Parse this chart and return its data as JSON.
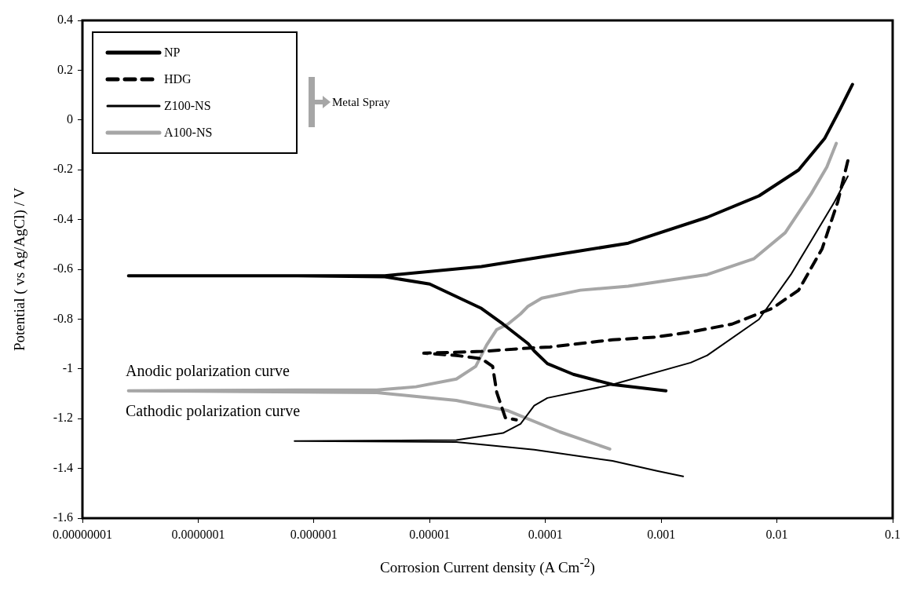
{
  "chart_data": {
    "type": "line",
    "xlabel": "Corrosion Current density (A Cm$^{-2}$)",
    "ylabel": "Potential ( vs Ag/AgCl) / V",
    "log": "x",
    "grid": false,
    "legend": "top left",
    "xlim": [
      1e-08,
      0.1
    ],
    "ylim": [
      -1.6,
      0.4
    ],
    "xticks": [
      {
        "value": 1e-08,
        "label": "0.00000001"
      },
      {
        "value": 1e-07,
        "label": "0.0000001"
      },
      {
        "value": 1e-06,
        "label": "0.000001"
      },
      {
        "value": 1e-05,
        "label": "0.00001"
      },
      {
        "value": 0.0001,
        "label": "0.0001"
      },
      {
        "value": 0.001,
        "label": "0.001"
      },
      {
        "value": 0.01,
        "label": "0.01"
      },
      {
        "value": 0.1,
        "label": "0.1"
      }
    ],
    "yticks": [
      -1.6,
      -1.4,
      -1.2,
      -1,
      -0.8,
      -0.6,
      -0.4,
      -0.2,
      0,
      0.2,
      0.4
    ],
    "annotations": [
      "Anodic polarization curve",
      "Cathodic polarization curve",
      "Metal Spray"
    ],
    "series": [
      {
        "name": "NP",
        "color": "#000000",
        "line_style": "solid",
        "x": [
          0.0011,
          0.00038,
          0.000174,
          0.000104,
          8e-05,
          7.1e-05,
          4.3e-05,
          2.8e-05,
          1e-05,
          4.1e-06,
          7.3e-07,
          2.5e-08,
          7.3e-07,
          4.1e-06,
          2.8e-05,
          0.0002,
          0.00052,
          0.0025,
          0.007,
          0.0154,
          0.0258,
          0.035,
          0.045
        ],
        "values": [
          -1.088,
          -1.063,
          -1.022,
          -0.979,
          -0.928,
          -0.899,
          -0.82,
          -0.757,
          -0.659,
          -0.63,
          -0.626,
          -0.626,
          -0.626,
          -0.626,
          -0.589,
          -0.526,
          -0.495,
          -0.391,
          -0.305,
          -0.201,
          -0.075,
          0.042,
          0.143
        ]
      },
      {
        "name": "HDG",
        "color": "#000000",
        "line_style": "dashed",
        "x": [
          0.041,
          0.0336,
          0.0246,
          0.0154,
          0.0091,
          0.0041,
          0.0018,
          0.00087,
          0.00038,
          0.00011,
          8e-05,
          2.8e-05,
          8.9e-06,
          1.7e-05,
          2.8e-05,
          3.5e-05,
          3.8e-05,
          4.5e-05,
          5.6e-05
        ],
        "values": [
          -0.164,
          -0.328,
          -0.517,
          -0.684,
          -0.757,
          -0.82,
          -0.852,
          -0.873,
          -0.883,
          -0.912,
          -0.915,
          -0.93,
          -0.937,
          -0.946,
          -0.959,
          -0.99,
          -1.095,
          -1.196,
          -1.205
        ]
      },
      {
        "name": "Z100-NS",
        "color": "#000000",
        "line_style": "solid",
        "x": [
          0.00155,
          0.00092,
          0.00038,
          8e-05,
          1.7e-05,
          7.3e-07,
          6.8e-07,
          1.7e-05,
          4.3e-05,
          6.1e-05,
          8e-05,
          0.000104,
          0.00038,
          0.0018,
          0.0025,
          0.007,
          0.0132,
          0.0198,
          0.0316,
          0.041
        ],
        "values": [
          -1.432,
          -1.41,
          -1.37,
          -1.325,
          -1.294,
          -1.29,
          -1.29,
          -1.286,
          -1.258,
          -1.221,
          -1.148,
          -1.117,
          -1.063,
          -0.975,
          -0.946,
          -0.801,
          -0.621,
          -0.485,
          -0.327,
          -0.226
        ]
      },
      {
        "name": "A100-NS",
        "color": "#a6a6a6",
        "line_style": "solid",
        "x": [
          0.00036,
          0.000133,
          4.75e-05,
          1.7e-05,
          3.5e-06,
          2.5e-08,
          7.3e-07,
          3.5e-06,
          7.6e-06,
          1.7e-05,
          2.5e-05,
          3.1e-05,
          3.8e-05,
          4.75e-05,
          6.1e-05,
          7.1e-05,
          9.3e-05,
          0.0002,
          0.00052,
          0.0025,
          0.0063,
          0.0118,
          0.0198,
          0.027,
          0.0326
        ],
        "values": [
          -1.322,
          -1.253,
          -1.168,
          -1.127,
          -1.095,
          -1.088,
          -1.085,
          -1.085,
          -1.072,
          -1.041,
          -0.99,
          -0.905,
          -0.842,
          -0.82,
          -0.779,
          -0.748,
          -0.716,
          -0.684,
          -0.668,
          -0.621,
          -0.558,
          -0.453,
          -0.296,
          -0.189,
          -0.094
        ]
      }
    ]
  }
}
